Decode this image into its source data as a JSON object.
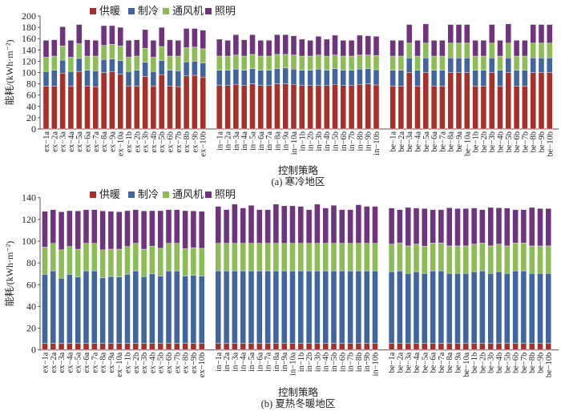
{
  "legend": [
    "供暖",
    "制冷",
    "通风机",
    "照明"
  ],
  "colors": {
    "heating": "#A8302A",
    "cooling": "#41659F",
    "ventilation": "#8BBC55",
    "lighting": "#70347F"
  },
  "chart_data": [
    {
      "type": "bar",
      "stacked": true,
      "caption": "(a) 寒冷地区",
      "xlabel": "控制策略",
      "ylabel": "能耗/(kWh·m⁻²)",
      "ylim": [
        0,
        200
      ],
      "yticks": [
        0,
        20,
        40,
        60,
        80,
        100,
        120,
        140,
        160,
        180,
        200
      ],
      "legend_position": "top",
      "groups": [
        {
          "categories": [
            "ex−1a",
            "ex−2a",
            "ex−3a",
            "ex−4a",
            "ex−5a",
            "ex−6a",
            "ex−7a",
            "ex−8a",
            "ex−9a",
            "ex−10a",
            "ex−1b",
            "ex−2b",
            "ex−3b",
            "ex−4b",
            "ex−5b",
            "ex−6b",
            "ex−7b",
            "ex−8b",
            "ex−9b",
            "ex−10b"
          ],
          "series": [
            {
              "name": "供暖",
              "values": [
                76,
                76,
                99,
                76,
                102,
                76,
                75,
                100,
                101,
                97,
                76,
                76,
                93,
                76,
                96,
                76,
                75,
                94,
                95,
                92
              ]
            },
            {
              "name": "制冷",
              "values": [
                26,
                28,
                23,
                26,
                23,
                28,
                28,
                23,
                23,
                24,
                26,
                28,
                25,
                26,
                25,
                28,
                28,
                25,
                25,
                25
              ]
            },
            {
              "name": "通风机",
              "values": [
                25,
                25,
                25,
                25,
                26,
                25,
                26,
                25,
                26,
                26,
                25,
                25,
                25,
                25,
                25,
                25,
                26,
                25,
                25,
                25
              ]
            },
            {
              "name": "照明",
              "values": [
                30,
                29,
                34,
                30,
                34,
                29,
                28,
                35,
                33,
                33,
                30,
                29,
                33,
                30,
                34,
                29,
                28,
                34,
                33,
                33
              ]
            }
          ]
        },
        {
          "categories": [
            "in−1a",
            "in−2a",
            "in−3a",
            "in−4a",
            "in−5a",
            "in−6a",
            "in−7a",
            "in−8a",
            "in−9a",
            "in−10a",
            "in−1b",
            "in−2b",
            "in−3b",
            "in−4b",
            "in−5b",
            "in−6b",
            "in−7b",
            "in−8b",
            "in−9b",
            "in−10b"
          ],
          "series": [
            {
              "name": "供暖",
              "values": [
                77,
                77,
                79,
                77,
                80,
                77,
                77,
                80,
                80,
                79,
                77,
                77,
                77,
                77,
                79,
                77,
                77,
                79,
                80,
                78
              ]
            },
            {
              "name": "制冷",
              "values": [
                27,
                27,
                27,
                27,
                27,
                27,
                27,
                27,
                28,
                27,
                27,
                27,
                29,
                27,
                28,
                27,
                27,
                27,
                27,
                27
              ]
            },
            {
              "name": "通风机",
              "values": [
                25,
                25,
                25,
                25,
                25,
                25,
                25,
                25,
                24,
                25,
                25,
                25,
                25,
                25,
                24,
                25,
                25,
                25,
                24,
                25
              ]
            },
            {
              "name": "照明",
              "values": [
                30,
                28,
                36,
                29,
                35,
                28,
                28,
                35,
                35,
                34,
                30,
                28,
                33,
                30,
                35,
                28,
                28,
                35,
                34,
                34
              ]
            }
          ]
        },
        {
          "categories": [
            "be−1a",
            "be−2a",
            "be−3a",
            "be−4a",
            "be−5a",
            "be−6a",
            "be−7a",
            "be−8a",
            "be−9a",
            "be−10a",
            "be−1b",
            "be−2b",
            "be−3b",
            "be−4b",
            "be−5b",
            "be−6b",
            "be−7b",
            "be−8b",
            "be−9b",
            "be−10b"
          ],
          "series": [
            {
              "name": "供暖",
              "values": [
                76,
                76,
                100,
                76,
                100,
                76,
                76,
                100,
                100,
                100,
                76,
                76,
                100,
                76,
                100,
                76,
                76,
                100,
                100,
                100
              ]
            },
            {
              "name": "制冷",
              "values": [
                28,
                28,
                26,
                28,
                26,
                28,
                28,
                26,
                26,
                26,
                28,
                28,
                26,
                28,
                26,
                28,
                28,
                26,
                26,
                26
              ]
            },
            {
              "name": "通风机",
              "values": [
                25,
                25,
                26,
                25,
                26,
                25,
                25,
                26,
                26,
                26,
                25,
                25,
                26,
                25,
                26,
                25,
                25,
                26,
                26,
                26
              ]
            },
            {
              "name": "照明",
              "values": [
                28,
                28,
                33,
                28,
                34,
                28,
                28,
                33,
                33,
                33,
                28,
                28,
                33,
                28,
                34,
                28,
                28,
                33,
                33,
                33
              ]
            }
          ]
        }
      ]
    },
    {
      "type": "bar",
      "stacked": true,
      "caption": "(b) 夏热冬暖地区",
      "xlabel": "控制策略",
      "ylabel": "能耗/(kWh·m⁻²)",
      "ylim": [
        0,
        140
      ],
      "yticks": [
        0,
        20,
        40,
        60,
        80,
        100,
        120,
        140
      ],
      "legend_position": "top",
      "groups": [
        {
          "categories": [
            "ex−1a",
            "ex−2a",
            "ex−3a",
            "ex−4a",
            "ex−5a",
            "ex−6a",
            "ex−7a",
            "ex−8a",
            "ex−9a",
            "ex−10a",
            "ex−1b",
            "ex−2b",
            "ex−3b",
            "ex−4b",
            "ex−5b",
            "ex−6b",
            "ex−7b",
            "ex−8b",
            "ex−9b",
            "ex−10b"
          ],
          "series": [
            {
              "name": "供暖",
              "values": [
                6,
                6,
                6,
                6,
                6,
                6,
                6,
                6,
                6,
                6,
                6,
                6,
                6,
                6,
                6,
                6,
                6,
                6,
                6,
                6
              ]
            },
            {
              "name": "制冷",
              "values": [
                63.5,
                66.7,
                60,
                63.5,
                61,
                66.7,
                66.7,
                60.5,
                61.5,
                61,
                63.5,
                66.7,
                61.5,
                64,
                62,
                66.7,
                66.7,
                62,
                62.5,
                62
              ]
            },
            {
              "name": "通风机",
              "values": [
                25,
                25.3,
                26,
                25.5,
                25.6,
                25.3,
                25.3,
                25.5,
                25.1,
                25.6,
                25.5,
                25.3,
                25.1,
                25.3,
                25.4,
                25.3,
                25.3,
                25,
                25.5,
                25.4
              ]
            },
            {
              "name": "照明",
              "values": [
                33,
                31,
                35,
                33,
                35.2,
                31,
                31,
                35.8,
                34.9,
                34.4,
                33,
                31,
                35.2,
                32.7,
                34.6,
                31,
                31,
                35,
                33.8,
                34.1
              ]
            }
          ]
        },
        {
          "categories": [
            "in−1a",
            "in−2a",
            "in−3a",
            "in−4a",
            "in−5a",
            "in−6a",
            "in−7a",
            "in−8a",
            "in−9a",
            "in−10a",
            "in−1b",
            "in−2b",
            "in−3b",
            "in−4b",
            "in−5b",
            "in−6b",
            "in−7b",
            "in−8b",
            "in−9b",
            "in−10b"
          ],
          "series": [
            {
              "name": "供暖",
              "values": [
                6,
                6,
                6,
                6,
                6,
                6,
                6,
                6,
                6,
                6,
                6,
                6,
                6,
                6,
                6,
                6,
                6,
                6,
                6,
                6
              ]
            },
            {
              "name": "制冷",
              "values": [
                66.7,
                66.7,
                66.7,
                66.7,
                66.7,
                66.7,
                66.7,
                66.7,
                66.7,
                66.7,
                66.7,
                66.7,
                66.7,
                66.7,
                66.7,
                66.7,
                66.7,
                66.7,
                66.7,
                66.7
              ]
            },
            {
              "name": "通风机",
              "values": [
                25.3,
                25.3,
                25.3,
                25.3,
                25.3,
                25.3,
                25.3,
                25.3,
                25.3,
                25.3,
                25.3,
                25.3,
                25.3,
                25.3,
                25.3,
                25.3,
                25.3,
                25.3,
                25.3,
                25.3
              ]
            },
            {
              "name": "照明",
              "values": [
                34,
                31,
                36,
                32.5,
                35,
                31,
                31,
                36,
                34.5,
                34.5,
                34,
                31,
                36,
                32.5,
                35,
                31,
                31,
                35.5,
                34,
                34
              ]
            }
          ]
        },
        {
          "categories": [
            "be−1a",
            "be−2a",
            "be−3a",
            "be−4a",
            "be−5a",
            "be−6a",
            "be−7a",
            "be−8a",
            "be−9a",
            "be−10a",
            "be−1b",
            "be−2b",
            "be−3b",
            "be−4b",
            "be−5b",
            "be−6b",
            "be−7b",
            "be−8b",
            "be−9b",
            "be−10b"
          ],
          "series": [
            {
              "name": "供暖",
              "values": [
                6,
                6,
                6,
                6,
                6,
                6,
                6,
                6,
                6,
                6,
                6,
                6,
                6,
                6,
                6,
                6,
                6,
                6,
                6,
                6
              ]
            },
            {
              "name": "制冷",
              "values": [
                66,
                66.7,
                64.3,
                66,
                64.3,
                66.7,
                66.7,
                64.3,
                64.3,
                64.3,
                66,
                66.7,
                64.3,
                66,
                64.3,
                66.7,
                66.7,
                64.3,
                64.3,
                64.3
              ]
            },
            {
              "name": "通风机",
              "values": [
                25.3,
                25.6,
                25.3,
                25.3,
                25.1,
                25.6,
                25.6,
                25.3,
                25.3,
                25.3,
                25.3,
                25.6,
                25.3,
                25.3,
                25.3,
                25.6,
                25.6,
                25.3,
                25.3,
                25.3
              ]
            },
            {
              "name": "照明",
              "values": [
                33.2,
                30.7,
                35.4,
                33.2,
                34.6,
                30.7,
                30.7,
                35.1,
                34.4,
                34.4,
                33.2,
                30.7,
                35.4,
                33.4,
                34.8,
                30.7,
                30.7,
                35.4,
                34.4,
                34.4
              ]
            }
          ]
        }
      ]
    }
  ]
}
